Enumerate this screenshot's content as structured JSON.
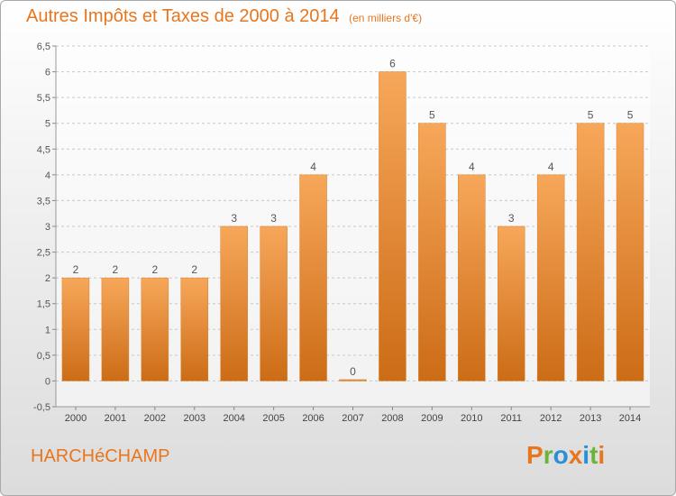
{
  "title": "Autres Impôts et Taxes de 2000 à 2014",
  "subtitle": "(en milliers d'€)",
  "place": "HARCHéCHAMP",
  "logo": {
    "letters": [
      "P",
      "r",
      "o",
      "x",
      "i",
      "t",
      "i"
    ],
    "colors": [
      "#e8761e",
      "#6bb33a",
      "#2a8fd6",
      "#e8761e",
      "#2a8fd6",
      "#6bb33a",
      "#e8761e"
    ]
  },
  "colors": {
    "accent": "#e8761e",
    "bar_light": "#f7a75a",
    "bar_dark": "#cc6c16",
    "grid": "#c8c8c8"
  },
  "chart_data": {
    "type": "bar",
    "title": "Autres Impôts et Taxes de 2000 à 2014",
    "subtitle": "(en milliers d'€)",
    "categories": [
      "2000",
      "2001",
      "2002",
      "2003",
      "2004",
      "2005",
      "2006",
      "2007",
      "2008",
      "2009",
      "2010",
      "2011",
      "2012",
      "2013",
      "2014"
    ],
    "values": [
      2,
      2,
      2,
      2,
      3,
      3,
      4,
      0,
      6,
      5,
      4,
      3,
      4,
      5,
      5
    ],
    "ylim": [
      -0.5,
      6.5
    ],
    "yticks": [
      "-0,5",
      "0",
      "0,5",
      "1",
      "1,5",
      "2",
      "2,5",
      "3",
      "3,5",
      "4",
      "4,5",
      "5",
      "5,5",
      "6",
      "6,5"
    ],
    "grid": true,
    "legend": "none"
  }
}
